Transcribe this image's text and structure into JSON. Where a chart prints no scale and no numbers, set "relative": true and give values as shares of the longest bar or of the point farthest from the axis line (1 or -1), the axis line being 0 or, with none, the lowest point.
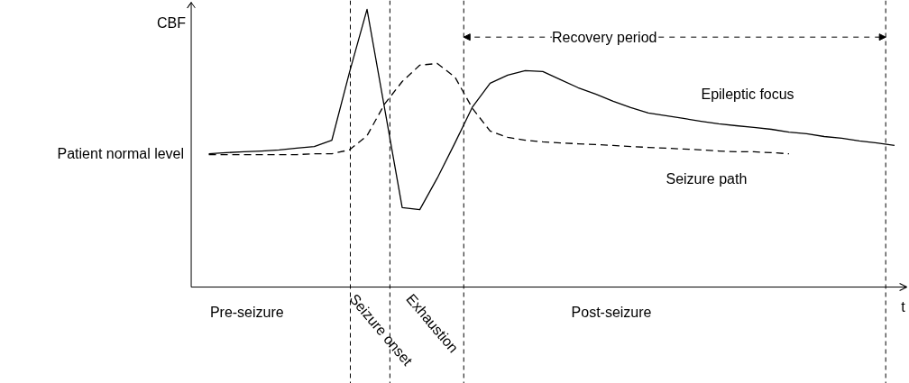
{
  "chart_data": {
    "type": "line",
    "relative": true,
    "xlabel": "t",
    "ylabel": "CBF",
    "categories": [
      null,
      null,
      null,
      null,
      null,
      null,
      null,
      null,
      null,
      null,
      null,
      null,
      null,
      null,
      null,
      null,
      null,
      null,
      null,
      null,
      null,
      null,
      null,
      null,
      null,
      null,
      null,
      null,
      null,
      null,
      null,
      null,
      null,
      null,
      null,
      null,
      null,
      null,
      null,
      null
    ],
    "series": [
      {
        "name": "Epileptic focus",
        "color": "#000000",
        "line_style": "solid",
        "values": [
          0.48,
          0.484,
          0.487,
          0.49,
          0.494,
          0.5,
          0.506,
          0.529,
          0.773,
          1,
          0.643,
          0.286,
          0.279,
          0.393,
          0.519,
          0.649,
          0.734,
          0.763,
          0.779,
          0.776,
          0.747,
          0.718,
          0.695,
          0.669,
          0.646,
          0.627,
          0.617,
          0.607,
          0.597,
          0.588,
          0.581,
          0.575,
          0.568,
          0.558,
          0.552,
          0.542,
          0.536,
          0.526,
          0.519,
          0.51
        ]
      },
      {
        "name": "Seizure path",
        "color": "#000000",
        "line_style": "dashed",
        "values": [
          0.477,
          0.477,
          0.477,
          0.477,
          0.477,
          0.477,
          0.48,
          0.48,
          0.494,
          0.545,
          0.659,
          0.74,
          0.799,
          0.805,
          0.756,
          0.643,
          0.562,
          0.539,
          0.529,
          0.523,
          0.519,
          0.516,
          0.513,
          0.51,
          0.506,
          0.503,
          0.5,
          0.497,
          0.494,
          0.49,
          0.487,
          0.487,
          0.484,
          0.48,
          null,
          null,
          null,
          null,
          null,
          null
        ]
      }
    ],
    "annotations": [
      "Patient normal level",
      "Recovery period",
      "Pre-seizure",
      "Seizure onset",
      "Exhaustion",
      "Post-seizure"
    ]
  }
}
